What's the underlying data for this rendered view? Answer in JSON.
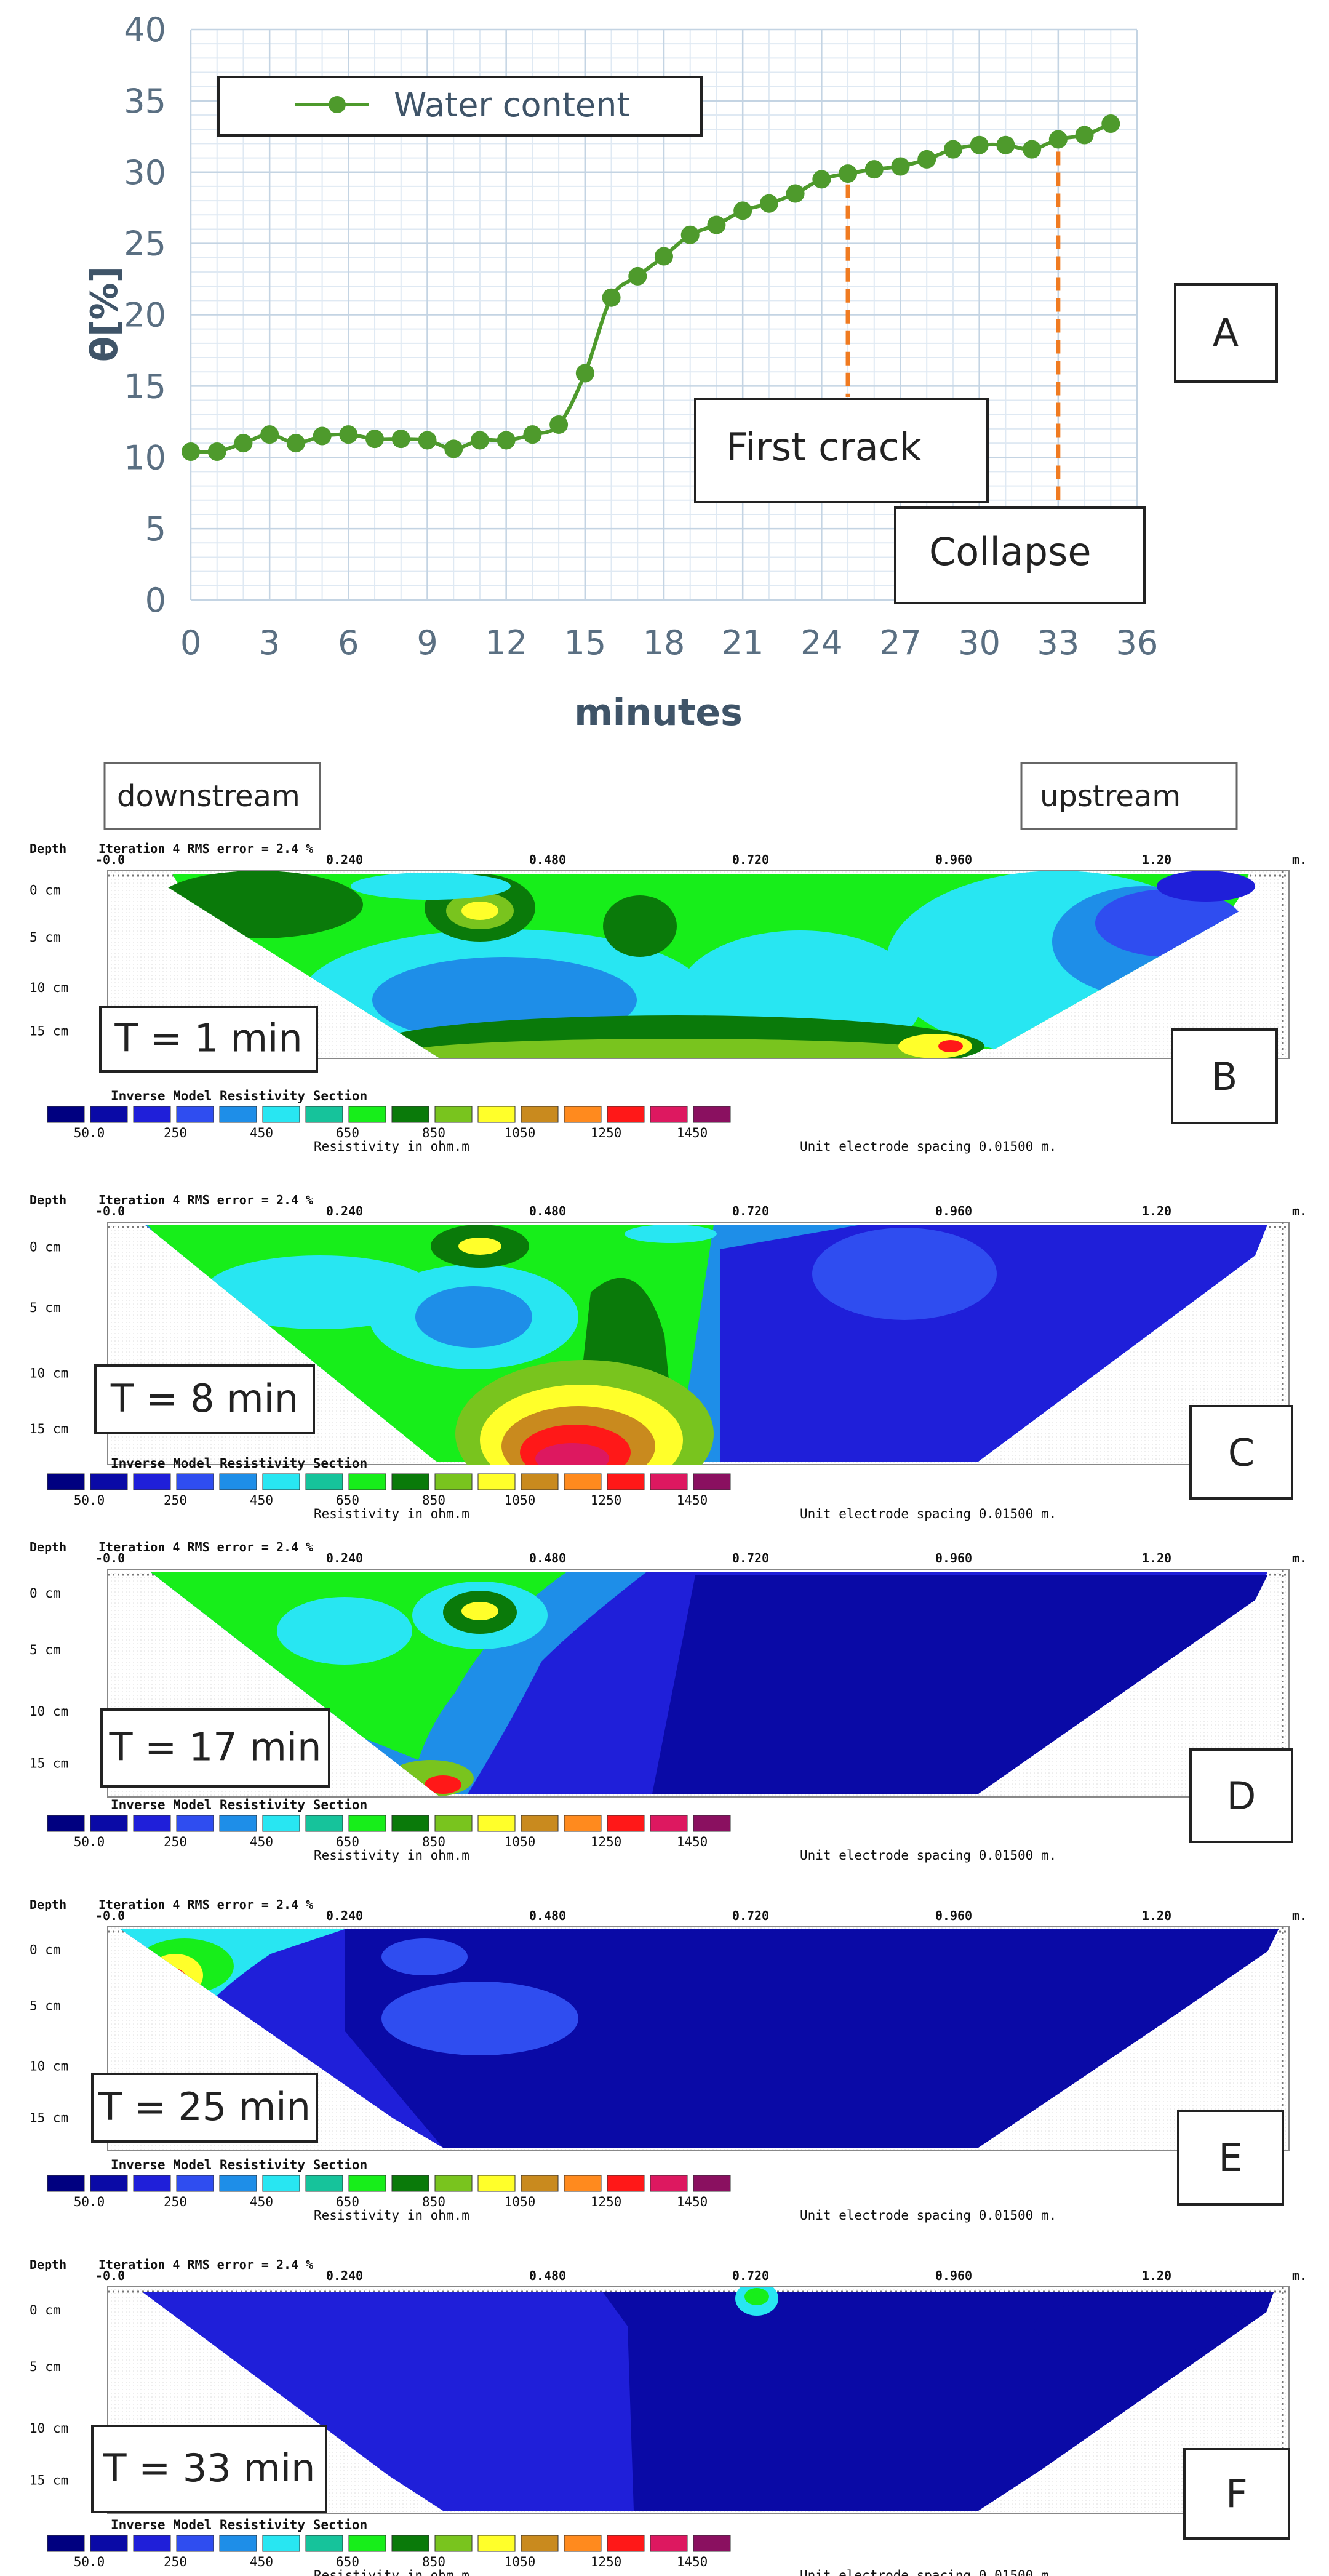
{
  "chart_data": [
    {
      "panel": "A",
      "type": "line",
      "xlabel": "minutes",
      "ylabel": "θ[%]",
      "xlim": [
        0,
        36
      ],
      "ylim": [
        0,
        40
      ],
      "xticks": [
        0,
        3,
        6,
        9,
        12,
        15,
        18,
        21,
        24,
        27,
        30,
        33,
        36
      ],
      "yticks": [
        0,
        5,
        10,
        15,
        20,
        25,
        30,
        35,
        40
      ],
      "grid": true,
      "legend_position": "top-left",
      "series": [
        {
          "name": "Water content",
          "color": "#4e9a2c",
          "x": [
            0,
            1,
            2,
            3,
            4,
            5,
            6,
            7,
            8,
            9,
            10,
            11,
            12,
            13,
            14,
            15,
            16,
            17,
            18,
            19,
            20,
            21,
            22,
            23,
            24,
            25,
            26,
            27,
            28,
            29,
            30,
            31,
            32,
            33,
            34,
            35
          ],
          "y": [
            10.4,
            10.4,
            11.0,
            11.6,
            11.0,
            11.5,
            11.6,
            11.3,
            11.3,
            11.2,
            10.6,
            11.2,
            11.2,
            11.6,
            12.3,
            15.9,
            21.2,
            22.7,
            24.1,
            25.6,
            26.3,
            27.3,
            27.8,
            28.5,
            29.5,
            29.9,
            30.2,
            30.4,
            30.9,
            31.6,
            31.9,
            31.9,
            31.6,
            32.3,
            32.6,
            33.4
          ]
        }
      ],
      "annotations": [
        {
          "label": "First crack",
          "x": 25
        },
        {
          "label": "Collapse",
          "x": 33
        }
      ],
      "panel_label": "A"
    },
    {
      "panel": "B-F",
      "type": "heatmap",
      "direction_labels": [
        "downstream",
        "upstream"
      ],
      "header": {
        "depth_label": "Depth",
        "iteration_text": "Iteration 4 RMS error = 2.4 %",
        "x_ticks": [
          "-0.0",
          "0.240",
          "0.480",
          "0.720",
          "0.960",
          "1.20"
        ],
        "x_unit": "m.",
        "depth_ticks": [
          "0 cm",
          "5 cm",
          "10 cm",
          "15 cm"
        ]
      },
      "footer": {
        "title": "Inverse Model Resistivity Section",
        "scale_title": "Resistivity in ohm.m",
        "spacing_text": "Unit electrode spacing 0.01500 m."
      },
      "color_scale": {
        "labels": [
          "50.0",
          "250",
          "450",
          "650",
          "850",
          "1050",
          "1250",
          "1450"
        ],
        "colors": [
          "#000080",
          "#0a0aa6",
          "#1f1fd9",
          "#2f4df0",
          "#1e8ee8",
          "#28e6f2",
          "#16c39b",
          "#17ee1a",
          "#0a7a0a",
          "#79c41e",
          "#ffff2a",
          "#c98a1e",
          "#ff8a1e",
          "#ff1818",
          "#dd1860",
          "#8a1060"
        ]
      },
      "sections": [
        {
          "panel_label": "B",
          "time_label": "T = 1 min"
        },
        {
          "panel_label": "C",
          "time_label": "T = 8 min"
        },
        {
          "panel_label": "D",
          "time_label": "T = 17 min"
        },
        {
          "panel_label": "E",
          "time_label": "T = 25 min"
        },
        {
          "panel_label": "F",
          "time_label": "T = 33 min"
        }
      ]
    }
  ]
}
